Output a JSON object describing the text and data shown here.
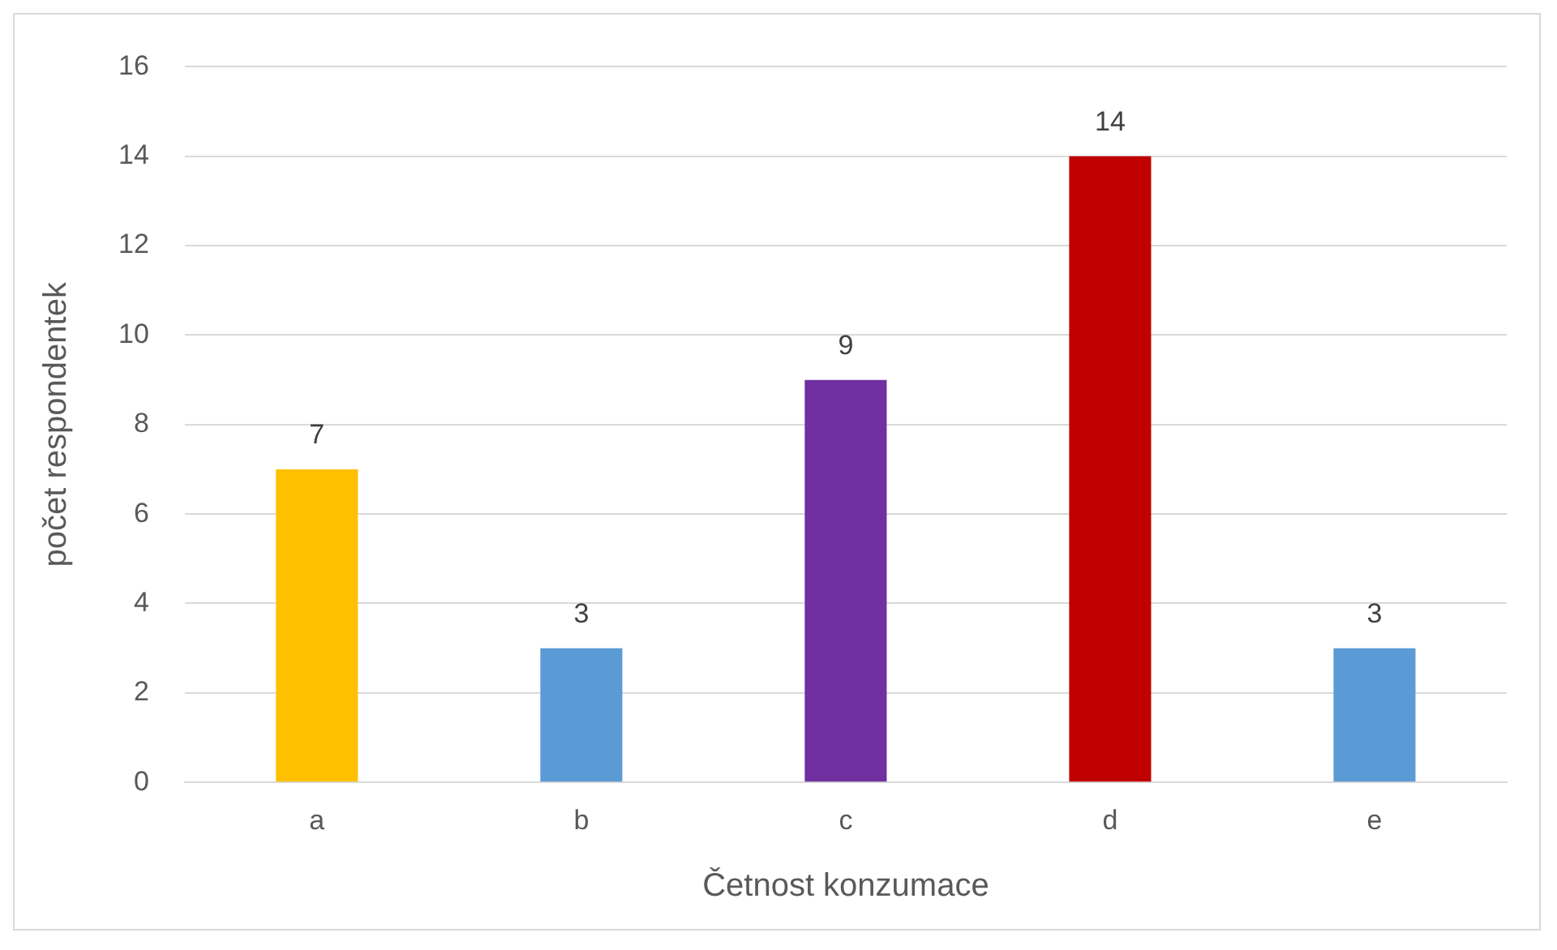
{
  "chart_data": {
    "type": "bar",
    "xlabel": "Četnost konzumace",
    "ylabel": "počet respondentek",
    "categories": [
      "a",
      "b",
      "c",
      "d",
      "e"
    ],
    "values": [
      7,
      3,
      9,
      14,
      3
    ],
    "colors": [
      "#ffc000",
      "#5b9bd5",
      "#7030a0",
      "#c00000",
      "#5b9bd5"
    ],
    "ylim": [
      0,
      16
    ],
    "yticks": [
      0,
      2,
      4,
      6,
      8,
      10,
      12,
      14,
      16
    ],
    "grid": "y",
    "data_labels": true,
    "legend": false
  }
}
